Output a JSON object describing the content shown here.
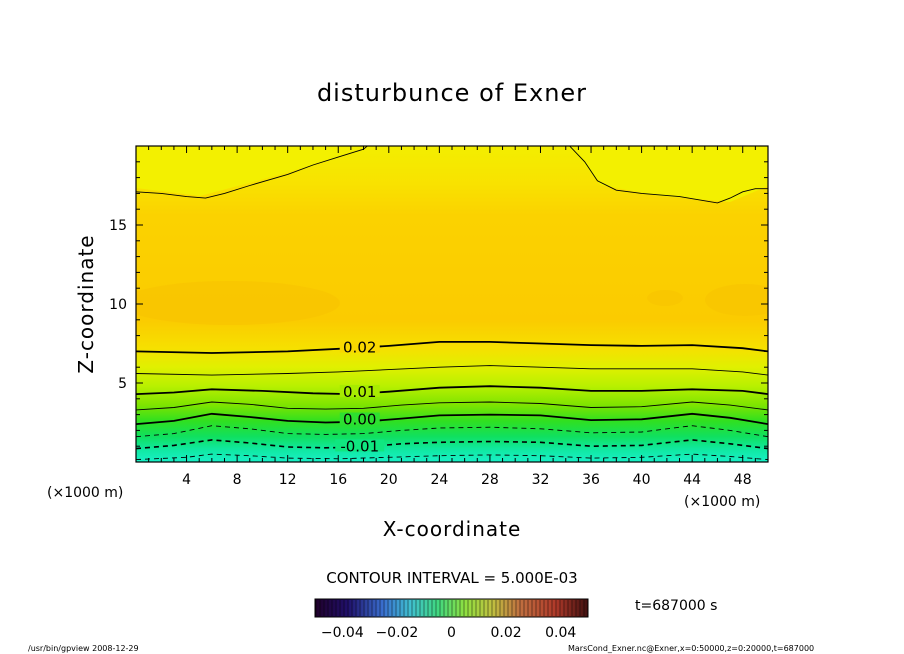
{
  "chart_data": {
    "type": "contour",
    "title": "disturbunce of Exner",
    "xlabel": "X-coordinate",
    "ylabel": "Z-coordinate",
    "x_unit_left": "(×1000 m)",
    "x_unit_right": "(×1000 m)",
    "xlim": [
      0,
      50
    ],
    "ylim": [
      0,
      20
    ],
    "x_ticks": [
      "4",
      "8",
      "12",
      "16",
      "20",
      "24",
      "28",
      "32",
      "36",
      "40",
      "44",
      "48"
    ],
    "y_ticks": [
      "5",
      "10",
      "15"
    ],
    "contour_interval_text": "CONTOUR INTERVAL = 5.000E-03",
    "contour_labels": [
      {
        "text": "0.02",
        "x": 17.7,
        "z": 7.3
      },
      {
        "text": "0.01",
        "x": 17.7,
        "z": 4.5
      },
      {
        "text": "0.00",
        "x": 17.7,
        "z": 2.75
      },
      {
        "text": "-0.01",
        "x": 17.7,
        "z": 1.05
      }
    ],
    "solid_contours": [
      {
        "level": 0.025,
        "points": [
          [
            0,
            17.1
          ],
          [
            2,
            17.0
          ],
          [
            4,
            16.8
          ],
          [
            5.5,
            16.7
          ],
          [
            7,
            17.0
          ],
          [
            9,
            17.5
          ],
          [
            12,
            18.2
          ],
          [
            14,
            18.8
          ],
          [
            16,
            19.3
          ],
          [
            18,
            19.8
          ],
          [
            18.3,
            20
          ]
        ]
      },
      {
        "level": 0.025,
        "points": [
          [
            34.3,
            20
          ],
          [
            35.5,
            19.0
          ],
          [
            36.5,
            17.8
          ],
          [
            38,
            17.2
          ],
          [
            40,
            17.0
          ],
          [
            43,
            16.8
          ],
          [
            46,
            16.4
          ],
          [
            47,
            16.7
          ],
          [
            48,
            17.1
          ],
          [
            49,
            17.3
          ],
          [
            50,
            17.3
          ]
        ]
      },
      {
        "level": 0.02,
        "points": [
          [
            0,
            7.0
          ],
          [
            6,
            6.9
          ],
          [
            12,
            7.0
          ],
          [
            17,
            7.2
          ],
          [
            20,
            7.35
          ],
          [
            24,
            7.6
          ],
          [
            28,
            7.6
          ],
          [
            32,
            7.5
          ],
          [
            36,
            7.4
          ],
          [
            40,
            7.35
          ],
          [
            44,
            7.4
          ],
          [
            48,
            7.2
          ],
          [
            50,
            7.0
          ]
        ]
      },
      {
        "level": 0.015,
        "points": [
          [
            0,
            5.6
          ],
          [
            6,
            5.5
          ],
          [
            12,
            5.6
          ],
          [
            16,
            5.7
          ],
          [
            20,
            5.85
          ],
          [
            24,
            6.0
          ],
          [
            28,
            6.1
          ],
          [
            32,
            6.0
          ],
          [
            36,
            5.9
          ],
          [
            40,
            5.9
          ],
          [
            44,
            5.9
          ],
          [
            48,
            5.7
          ],
          [
            50,
            5.5
          ]
        ]
      },
      {
        "level": 0.01,
        "points": [
          [
            0,
            4.3
          ],
          [
            3,
            4.4
          ],
          [
            6,
            4.6
          ],
          [
            10,
            4.5
          ],
          [
            14,
            4.35
          ],
          [
            17,
            4.3
          ],
          [
            20,
            4.45
          ],
          [
            24,
            4.7
          ],
          [
            28,
            4.8
          ],
          [
            32,
            4.7
          ],
          [
            36,
            4.5
          ],
          [
            40,
            4.5
          ],
          [
            44,
            4.6
          ],
          [
            48,
            4.5
          ],
          [
            50,
            4.3
          ]
        ]
      },
      {
        "level": 0.005,
        "points": [
          [
            0,
            3.3
          ],
          [
            3,
            3.45
          ],
          [
            6,
            3.8
          ],
          [
            9,
            3.65
          ],
          [
            12,
            3.4
          ],
          [
            15,
            3.35
          ],
          [
            18,
            3.4
          ],
          [
            21,
            3.6
          ],
          [
            24,
            3.75
          ],
          [
            28,
            3.8
          ],
          [
            32,
            3.7
          ],
          [
            36,
            3.45
          ],
          [
            40,
            3.5
          ],
          [
            44,
            3.8
          ],
          [
            47,
            3.6
          ],
          [
            50,
            3.3
          ]
        ]
      },
      {
        "level": 0.0,
        "points": [
          [
            0,
            2.4
          ],
          [
            3,
            2.6
          ],
          [
            6,
            3.05
          ],
          [
            9,
            2.85
          ],
          [
            12,
            2.6
          ],
          [
            15,
            2.5
          ],
          [
            18,
            2.55
          ],
          [
            21,
            2.75
          ],
          [
            24,
            2.95
          ],
          [
            28,
            3.0
          ],
          [
            32,
            2.95
          ],
          [
            36,
            2.65
          ],
          [
            40,
            2.7
          ],
          [
            44,
            3.05
          ],
          [
            47,
            2.8
          ],
          [
            50,
            2.4
          ]
        ]
      }
    ],
    "dashed_contours": [
      {
        "level": -0.005,
        "points": [
          [
            0,
            1.6
          ],
          [
            3,
            1.8
          ],
          [
            6,
            2.3
          ],
          [
            9,
            2.1
          ],
          [
            12,
            1.8
          ],
          [
            15,
            1.75
          ],
          [
            18,
            1.8
          ],
          [
            21,
            2.0
          ],
          [
            24,
            2.15
          ],
          [
            28,
            2.2
          ],
          [
            32,
            2.1
          ],
          [
            36,
            1.85
          ],
          [
            40,
            1.9
          ],
          [
            44,
            2.3
          ],
          [
            47,
            2.0
          ],
          [
            50,
            1.6
          ]
        ]
      },
      {
        "level": -0.01,
        "points": [
          [
            0,
            0.85
          ],
          [
            3,
            1.05
          ],
          [
            6,
            1.4
          ],
          [
            9,
            1.2
          ],
          [
            12,
            0.95
          ],
          [
            15,
            0.9
          ],
          [
            18,
            0.95
          ],
          [
            21,
            1.15
          ],
          [
            24,
            1.25
          ],
          [
            28,
            1.3
          ],
          [
            32,
            1.25
          ],
          [
            36,
            1.0
          ],
          [
            40,
            1.05
          ],
          [
            44,
            1.4
          ],
          [
            47,
            1.15
          ],
          [
            50,
            0.85
          ]
        ]
      },
      {
        "level": -0.015,
        "points": [
          [
            0,
            0.15
          ],
          [
            4,
            0.3
          ],
          [
            6,
            0.5
          ],
          [
            9,
            0.4
          ],
          [
            12,
            0.25
          ],
          [
            16,
            0.2
          ],
          [
            20,
            0.3
          ],
          [
            24,
            0.4
          ],
          [
            28,
            0.45
          ],
          [
            32,
            0.4
          ],
          [
            36,
            0.25
          ],
          [
            40,
            0.3
          ],
          [
            44,
            0.5
          ],
          [
            47,
            0.35
          ],
          [
            50,
            0.15
          ]
        ]
      }
    ],
    "colorbar": {
      "ticks": [
        "−0.04",
        "−0.02",
        "0",
        "0.02",
        "0.04"
      ],
      "range": [
        -0.05,
        0.05
      ]
    },
    "time_label": "t=687000 s",
    "footer_left": "/usr/bin/gpview   2008-12-29",
    "footer_right": "MarsCond_Exner.nc@Exner,x=0:50000,z=0:20000,t=687000"
  }
}
